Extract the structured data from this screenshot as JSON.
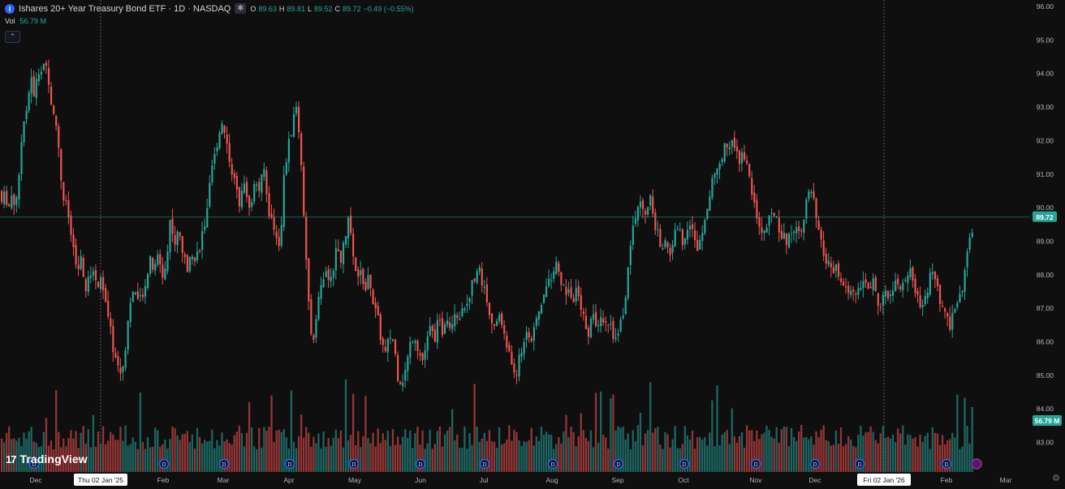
{
  "header": {
    "title": "Ishares 20+ Year Treasury Bond ETF · 1D · NASDAQ",
    "ohlc": [
      {
        "label": "O",
        "value": "89.63"
      },
      {
        "label": "H",
        "value": "89.81"
      },
      {
        "label": "L",
        "value": "89.52"
      },
      {
        "label": "C",
        "value": "89.72"
      }
    ],
    "change": "−0.49 (−0.55%)",
    "volume_label": "Vol",
    "volume_value": "56.79 M"
  },
  "brand": "TradingView",
  "colors": {
    "up": "#26a69a",
    "down": "#ef5350",
    "background": "#0f0f0f",
    "price_line": "#26a69a",
    "event_icon": "#2962ff"
  },
  "chart_data": {
    "type": "candlestick",
    "price_axis": {
      "ticks": [
        "96.00",
        "95.00",
        "94.00",
        "93.00",
        "92.00",
        "91.00",
        "90.00",
        "89.00",
        "88.00",
        "87.00",
        "86.00",
        "85.00",
        "84.00",
        "83.00"
      ],
      "ylim": [
        82.6,
        96.2
      ]
    },
    "time_axis": {
      "labels": [
        "Dec",
        "Jan",
        "Feb",
        "Mar",
        "Apr",
        "May",
        "Jun",
        "Jul",
        "Aug",
        "Sep",
        "Oct",
        "Nov",
        "Dec",
        "Jan",
        "Feb",
        "Mar"
      ],
      "crosshair_labels": [
        "Thu 02 Jan '25",
        "Fri 02 Jan '26"
      ]
    },
    "last_price": "89.72",
    "last_volume": "56.79 M",
    "anchors": [
      {
        "x": 1,
        "y": 90.5
      },
      {
        "x": 3,
        "y": 89.8
      },
      {
        "x": 6,
        "y": 90.6
      },
      {
        "x": 10,
        "y": 89.9
      },
      {
        "x": 14,
        "y": 90.4
      },
      {
        "x": 18,
        "y": 90.1
      },
      {
        "x": 23,
        "y": 90.7
      },
      {
        "x": 28,
        "y": 92.6
      },
      {
        "x": 33,
        "y": 93.0
      },
      {
        "x": 38,
        "y": 93.9
      },
      {
        "x": 42,
        "y": 93.2
      },
      {
        "x": 46,
        "y": 94.2
      },
      {
        "x": 50,
        "y": 93.8
      },
      {
        "x": 54,
        "y": 94.4
      },
      {
        "x": 58,
        "y": 94.0
      },
      {
        "x": 62,
        "y": 93.3
      },
      {
        "x": 66,
        "y": 92.7
      },
      {
        "x": 70,
        "y": 92.4
      },
      {
        "x": 74,
        "y": 91.1
      },
      {
        "x": 78,
        "y": 90.3
      },
      {
        "x": 82,
        "y": 90.0
      },
      {
        "x": 86,
        "y": 89.5
      },
      {
        "x": 90,
        "y": 88.7
      },
      {
        "x": 95,
        "y": 88.1
      },
      {
        "x": 100,
        "y": 88.4
      },
      {
        "x": 105,
        "y": 87.5
      },
      {
        "x": 110,
        "y": 87.9
      },
      {
        "x": 115,
        "y": 88.2
      },
      {
        "x": 120,
        "y": 87.6
      },
      {
        "x": 125,
        "y": 88.0
      },
      {
        "x": 130,
        "y": 87.1
      },
      {
        "x": 135,
        "y": 86.5
      },
      {
        "x": 140,
        "y": 85.7
      },
      {
        "x": 145,
        "y": 85.3
      },
      {
        "x": 150,
        "y": 85.0
      },
      {
        "x": 155,
        "y": 86.0
      },
      {
        "x": 160,
        "y": 87.2
      },
      {
        "x": 165,
        "y": 87.6
      },
      {
        "x": 170,
        "y": 87.1
      },
      {
        "x": 175,
        "y": 87.4
      },
      {
        "x": 180,
        "y": 87.9
      },
      {
        "x": 185,
        "y": 88.4
      },
      {
        "x": 190,
        "y": 88.1
      },
      {
        "x": 195,
        "y": 88.6
      },
      {
        "x": 200,
        "y": 88.0
      },
      {
        "x": 205,
        "y": 88.3
      },
      {
        "x": 210,
        "y": 89.8
      },
      {
        "x": 215,
        "y": 88.9
      },
      {
        "x": 220,
        "y": 89.3
      },
      {
        "x": 225,
        "y": 88.7
      },
      {
        "x": 230,
        "y": 88.1
      },
      {
        "x": 235,
        "y": 88.9
      },
      {
        "x": 240,
        "y": 88.4
      },
      {
        "x": 245,
        "y": 88.8
      },
      {
        "x": 250,
        "y": 89.3
      },
      {
        "x": 255,
        "y": 89.8
      },
      {
        "x": 260,
        "y": 91.0
      },
      {
        "x": 265,
        "y": 91.6
      },
      {
        "x": 270,
        "y": 92.3
      },
      {
        "x": 275,
        "y": 92.6
      },
      {
        "x": 280,
        "y": 91.8
      },
      {
        "x": 285,
        "y": 91.2
      },
      {
        "x": 290,
        "y": 90.6
      },
      {
        "x": 295,
        "y": 90.2
      },
      {
        "x": 300,
        "y": 91.0
      },
      {
        "x": 305,
        "y": 90.0
      },
      {
        "x": 310,
        "y": 90.3
      },
      {
        "x": 315,
        "y": 90.8
      },
      {
        "x": 320,
        "y": 90.5
      },
      {
        "x": 325,
        "y": 91.2
      },
      {
        "x": 330,
        "y": 90.0
      },
      {
        "x": 335,
        "y": 89.6
      },
      {
        "x": 340,
        "y": 89.2
      },
      {
        "x": 345,
        "y": 88.9
      },
      {
        "x": 350,
        "y": 91.0
      },
      {
        "x": 355,
        "y": 91.8
      },
      {
        "x": 360,
        "y": 92.4
      },
      {
        "x": 365,
        "y": 93.0
      },
      {
        "x": 370,
        "y": 91.9
      },
      {
        "x": 375,
        "y": 89.1
      },
      {
        "x": 380,
        "y": 87.2
      },
      {
        "x": 385,
        "y": 85.8
      },
      {
        "x": 390,
        "y": 87.0
      },
      {
        "x": 395,
        "y": 87.6
      },
      {
        "x": 400,
        "y": 88.1
      },
      {
        "x": 405,
        "y": 87.7
      },
      {
        "x": 410,
        "y": 88.2
      },
      {
        "x": 415,
        "y": 88.8
      },
      {
        "x": 420,
        "y": 88.5
      },
      {
        "x": 425,
        "y": 89.0
      },
      {
        "x": 430,
        "y": 89.8
      },
      {
        "x": 435,
        "y": 88.4
      },
      {
        "x": 440,
        "y": 87.8
      },
      {
        "x": 445,
        "y": 88.1
      },
      {
        "x": 450,
        "y": 87.5
      },
      {
        "x": 455,
        "y": 88.0
      },
      {
        "x": 460,
        "y": 87.1
      },
      {
        "x": 465,
        "y": 86.7
      },
      {
        "x": 470,
        "y": 86.0
      },
      {
        "x": 475,
        "y": 85.6
      },
      {
        "x": 480,
        "y": 86.2
      },
      {
        "x": 485,
        "y": 86.0
      },
      {
        "x": 490,
        "y": 85.0
      },
      {
        "x": 495,
        "y": 84.8
      },
      {
        "x": 500,
        "y": 85.2
      },
      {
        "x": 505,
        "y": 85.9
      },
      {
        "x": 510,
        "y": 86.3
      },
      {
        "x": 515,
        "y": 85.8
      },
      {
        "x": 520,
        "y": 85.4
      },
      {
        "x": 525,
        "y": 85.9
      },
      {
        "x": 530,
        "y": 86.4
      },
      {
        "x": 535,
        "y": 86.1
      },
      {
        "x": 540,
        "y": 86.6
      },
      {
        "x": 545,
        "y": 86.3
      },
      {
        "x": 550,
        "y": 86.9
      },
      {
        "x": 555,
        "y": 86.4
      },
      {
        "x": 560,
        "y": 87.0
      },
      {
        "x": 565,
        "y": 86.6
      },
      {
        "x": 570,
        "y": 87.2
      },
      {
        "x": 575,
        "y": 87.0
      },
      {
        "x": 580,
        "y": 87.6
      },
      {
        "x": 585,
        "y": 88.0
      },
      {
        "x": 590,
        "y": 88.2
      },
      {
        "x": 595,
        "y": 87.7
      },
      {
        "x": 600,
        "y": 87.2
      },
      {
        "x": 605,
        "y": 86.8
      },
      {
        "x": 610,
        "y": 86.2
      },
      {
        "x": 615,
        "y": 86.9
      },
      {
        "x": 620,
        "y": 86.3
      },
      {
        "x": 625,
        "y": 85.8
      },
      {
        "x": 630,
        "y": 85.4
      },
      {
        "x": 635,
        "y": 85.0
      },
      {
        "x": 640,
        "y": 85.5
      },
      {
        "x": 645,
        "y": 86.0
      },
      {
        "x": 650,
        "y": 86.4
      },
      {
        "x": 655,
        "y": 86.0
      },
      {
        "x": 660,
        "y": 86.5
      },
      {
        "x": 665,
        "y": 87.0
      },
      {
        "x": 670,
        "y": 87.4
      },
      {
        "x": 675,
        "y": 87.8
      },
      {
        "x": 680,
        "y": 88.0
      },
      {
        "x": 685,
        "y": 88.3
      },
      {
        "x": 690,
        "y": 87.9
      },
      {
        "x": 695,
        "y": 87.5
      },
      {
        "x": 700,
        "y": 87.6
      },
      {
        "x": 705,
        "y": 87.2
      },
      {
        "x": 710,
        "y": 87.5
      },
      {
        "x": 715,
        "y": 87.0
      },
      {
        "x": 720,
        "y": 86.6
      },
      {
        "x": 725,
        "y": 86.3
      },
      {
        "x": 730,
        "y": 86.8
      },
      {
        "x": 735,
        "y": 86.5
      },
      {
        "x": 740,
        "y": 86.9
      },
      {
        "x": 745,
        "y": 86.4
      },
      {
        "x": 750,
        "y": 86.7
      },
      {
        "x": 755,
        "y": 86.2
      },
      {
        "x": 760,
        "y": 86.0
      },
      {
        "x": 765,
        "y": 86.6
      },
      {
        "x": 770,
        "y": 87.0
      },
      {
        "x": 775,
        "y": 88.8
      },
      {
        "x": 780,
        "y": 89.4
      },
      {
        "x": 785,
        "y": 89.9
      },
      {
        "x": 790,
        "y": 90.2
      },
      {
        "x": 795,
        "y": 89.7
      },
      {
        "x": 800,
        "y": 90.4
      },
      {
        "x": 805,
        "y": 89.6
      },
      {
        "x": 810,
        "y": 89.2
      },
      {
        "x": 815,
        "y": 88.8
      },
      {
        "x": 820,
        "y": 89.0
      },
      {
        "x": 825,
        "y": 88.6
      },
      {
        "x": 830,
        "y": 89.1
      },
      {
        "x": 835,
        "y": 89.5
      },
      {
        "x": 840,
        "y": 89.0
      },
      {
        "x": 845,
        "y": 89.3
      },
      {
        "x": 850,
        "y": 89.6
      },
      {
        "x": 855,
        "y": 89.0
      },
      {
        "x": 860,
        "y": 88.8
      },
      {
        "x": 865,
        "y": 89.4
      },
      {
        "x": 870,
        "y": 90.0
      },
      {
        "x": 875,
        "y": 90.5
      },
      {
        "x": 880,
        "y": 91.0
      },
      {
        "x": 885,
        "y": 91.3
      },
      {
        "x": 890,
        "y": 91.6
      },
      {
        "x": 895,
        "y": 91.9
      },
      {
        "x": 900,
        "y": 92.0
      },
      {
        "x": 905,
        "y": 91.7
      },
      {
        "x": 910,
        "y": 91.4
      },
      {
        "x": 915,
        "y": 91.8
      },
      {
        "x": 920,
        "y": 91.2
      },
      {
        "x": 925,
        "y": 90.6
      },
      {
        "x": 930,
        "y": 90.0
      },
      {
        "x": 935,
        "y": 89.5
      },
      {
        "x": 940,
        "y": 89.2
      },
      {
        "x": 945,
        "y": 89.5
      },
      {
        "x": 950,
        "y": 89.7
      },
      {
        "x": 955,
        "y": 89.9
      },
      {
        "x": 960,
        "y": 89.4
      },
      {
        "x": 965,
        "y": 89.1
      },
      {
        "x": 970,
        "y": 89.0
      },
      {
        "x": 975,
        "y": 89.3
      },
      {
        "x": 980,
        "y": 89.5
      },
      {
        "x": 985,
        "y": 89.2
      },
      {
        "x": 990,
        "y": 89.8
      },
      {
        "x": 995,
        "y": 90.3
      },
      {
        "x": 1000,
        "y": 90.5
      },
      {
        "x": 1005,
        "y": 89.7
      },
      {
        "x": 1010,
        "y": 89.0
      },
      {
        "x": 1015,
        "y": 88.6
      },
      {
        "x": 1020,
        "y": 88.3
      },
      {
        "x": 1025,
        "y": 88.0
      },
      {
        "x": 1030,
        "y": 88.2
      },
      {
        "x": 1035,
        "y": 87.8
      },
      {
        "x": 1040,
        "y": 87.6
      },
      {
        "x": 1045,
        "y": 87.4
      },
      {
        "x": 1050,
        "y": 87.7
      },
      {
        "x": 1055,
        "y": 87.3
      },
      {
        "x": 1060,
        "y": 87.6
      },
      {
        "x": 1065,
        "y": 87.9
      },
      {
        "x": 1070,
        "y": 87.5
      },
      {
        "x": 1075,
        "y": 87.8
      },
      {
        "x": 1080,
        "y": 87.3
      },
      {
        "x": 1085,
        "y": 87.1
      },
      {
        "x": 1090,
        "y": 87.5
      },
      {
        "x": 1095,
        "y": 87.2
      },
      {
        "x": 1100,
        "y": 87.6
      },
      {
        "x": 1105,
        "y": 87.8
      },
      {
        "x": 1110,
        "y": 87.4
      },
      {
        "x": 1115,
        "y": 87.9
      },
      {
        "x": 1120,
        "y": 88.2
      },
      {
        "x": 1125,
        "y": 87.6
      },
      {
        "x": 1130,
        "y": 87.3
      },
      {
        "x": 1135,
        "y": 86.9
      },
      {
        "x": 1140,
        "y": 87.3
      },
      {
        "x": 1145,
        "y": 87.9
      },
      {
        "x": 1150,
        "y": 88.1
      },
      {
        "x": 1155,
        "y": 87.5
      },
      {
        "x": 1160,
        "y": 87.0
      },
      {
        "x": 1165,
        "y": 86.7
      },
      {
        "x": 1170,
        "y": 86.5
      },
      {
        "x": 1175,
        "y": 86.9
      },
      {
        "x": 1180,
        "y": 87.3
      },
      {
        "x": 1185,
        "y": 87.6
      },
      {
        "x": 1190,
        "y": 88.4
      },
      {
        "x": 1195,
        "y": 89.0
      },
      {
        "x": 1200,
        "y": 89.72
      }
    ]
  }
}
